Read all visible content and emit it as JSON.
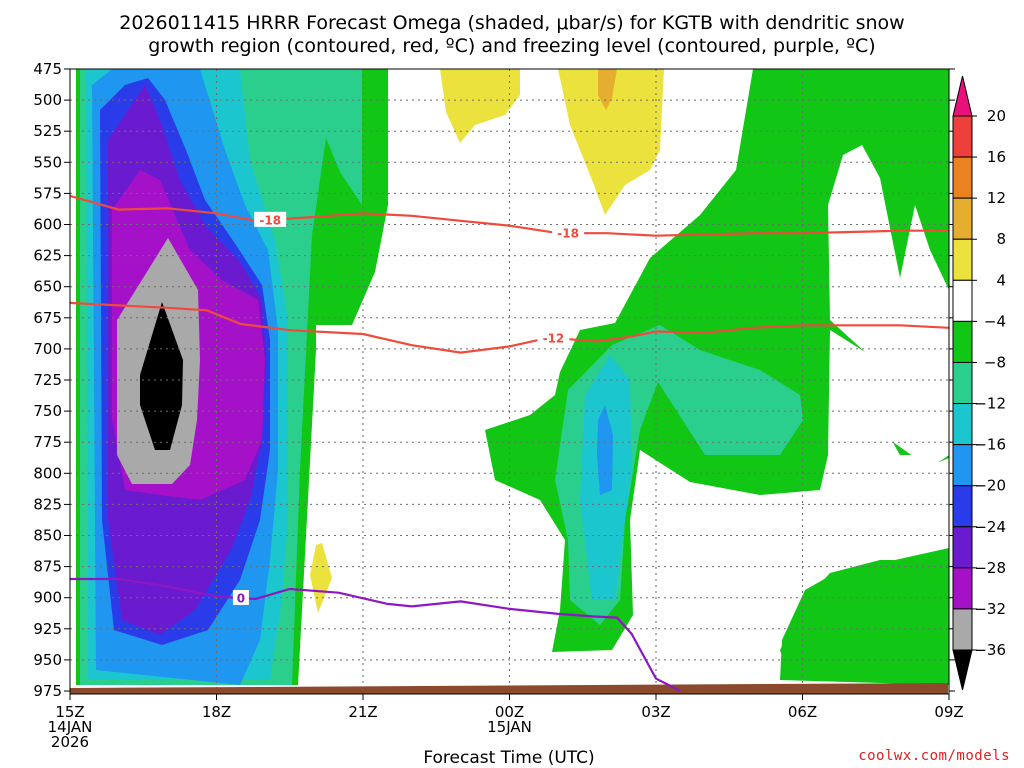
{
  "chart_data": {
    "type": "heatmap",
    "title_line1": "2026011415 HRRR Forecast Omega (shaded, μbar/s) for KGTB with dendritic snow",
    "title_line2": "growth region (contoured, red, ºC) and freezing level (contoured, purple, ºC)",
    "xlabel": "Forecast Time (UTC)",
    "credit": "coolwx.com/models",
    "x_ticks": [
      {
        "hour": 15,
        "lines": [
          "15Z",
          "14JAN",
          "2026"
        ]
      },
      {
        "hour": 18,
        "lines": [
          "18Z"
        ]
      },
      {
        "hour": 21,
        "lines": [
          "21Z"
        ]
      },
      {
        "hour": 24,
        "lines": [
          "00Z",
          "15JAN"
        ]
      },
      {
        "hour": 27,
        "lines": [
          "03Z"
        ]
      },
      {
        "hour": 30,
        "lines": [
          "06Z"
        ]
      },
      {
        "hour": 33,
        "lines": [
          "09Z"
        ]
      }
    ],
    "xlim": [
      15,
      33
    ],
    "y_ticks": [
      475,
      500,
      525,
      550,
      575,
      600,
      625,
      650,
      675,
      700,
      725,
      750,
      775,
      800,
      825,
      850,
      875,
      900,
      925,
      950,
      975
    ],
    "ylim_hpa": [
      475,
      975
    ],
    "grid": true,
    "colorbar": {
      "labels": [
        "20",
        "16",
        "12",
        "8",
        "4",
        "−4",
        "−8",
        "−12",
        "−16",
        "−20",
        "−24",
        "−28",
        "−32",
        "−36"
      ],
      "colors": [
        "#e8107a",
        "#ef3f3c",
        "#e9821f",
        "#e5ae2f",
        "#ece23d",
        "#ffffff",
        "#11c614",
        "#2bcf8d",
        "#1cc6cf",
        "#1f96f0",
        "#2a3cea",
        "#6a1bcf",
        "#a511c8",
        "#a9a9a9",
        "#000000"
      ]
    },
    "omega_regions": [
      {
        "level": "-8",
        "color": "#11c614"
      },
      {
        "level": "-12",
        "color": "#2bcf8d"
      },
      {
        "level": "-16",
        "color": "#1cc6cf"
      },
      {
        "level": "-20",
        "color": "#1f96f0"
      },
      {
        "level": "-24",
        "color": "#2a3cea"
      },
      {
        "level": "-28",
        "color": "#6a1bcf"
      },
      {
        "level": "-32",
        "color": "#a511c8"
      },
      {
        "level": "-36",
        "color": "#a9a9a9"
      },
      {
        "level": "below -36",
        "color": "#000000"
      },
      {
        "level": "4",
        "color": "#ece23d"
      },
      {
        "level": "8",
        "color": "#e5ae2f"
      }
    ],
    "series": [
      {
        "name": "-18",
        "color": "#ef4a3c",
        "points": [
          [
            15,
            577
          ],
          [
            16,
            588
          ],
          [
            17,
            587
          ],
          [
            18,
            591
          ],
          [
            18.8,
            597
          ],
          [
            20,
            594
          ],
          [
            21,
            591
          ],
          [
            22,
            593
          ],
          [
            23,
            597
          ],
          [
            24,
            601
          ],
          [
            25,
            607
          ],
          [
            26,
            607
          ],
          [
            27,
            609
          ],
          [
            28,
            608
          ],
          [
            29,
            607
          ],
          [
            30,
            607
          ],
          [
            31,
            606
          ],
          [
            32,
            605
          ],
          [
            33,
            605
          ]
        ]
      },
      {
        "name": "-12",
        "color": "#ef4a3c",
        "points": [
          [
            15,
            663
          ],
          [
            16,
            665
          ],
          [
            17,
            667
          ],
          [
            17.8,
            669
          ],
          [
            18.5,
            680
          ],
          [
            19.5,
            685
          ],
          [
            21,
            688
          ],
          [
            22,
            697
          ],
          [
            23,
            703
          ],
          [
            24,
            698
          ],
          [
            24.8,
            691
          ],
          [
            25.8,
            694
          ],
          [
            26.5,
            690
          ],
          [
            27,
            686
          ],
          [
            28,
            687
          ],
          [
            29,
            683
          ],
          [
            30,
            681
          ],
          [
            31,
            681
          ],
          [
            32,
            681
          ],
          [
            33,
            683
          ]
        ]
      },
      {
        "name": "0",
        "color": "#8e17c2",
        "points": [
          [
            15,
            885
          ],
          [
            16,
            885
          ],
          [
            17,
            891
          ],
          [
            18,
            899
          ],
          [
            18.8,
            901
          ],
          [
            19.5,
            893
          ],
          [
            20.5,
            896
          ],
          [
            21.5,
            905
          ],
          [
            22,
            907
          ],
          [
            23,
            903
          ],
          [
            24,
            909
          ],
          [
            25,
            913
          ],
          [
            25.7,
            915
          ],
          [
            26.2,
            916
          ],
          [
            26.5,
            929
          ],
          [
            27,
            965
          ],
          [
            27.5,
            975
          ]
        ]
      }
    ],
    "terrain": {
      "color": "#8b4a2b",
      "label": "ground"
    }
  }
}
